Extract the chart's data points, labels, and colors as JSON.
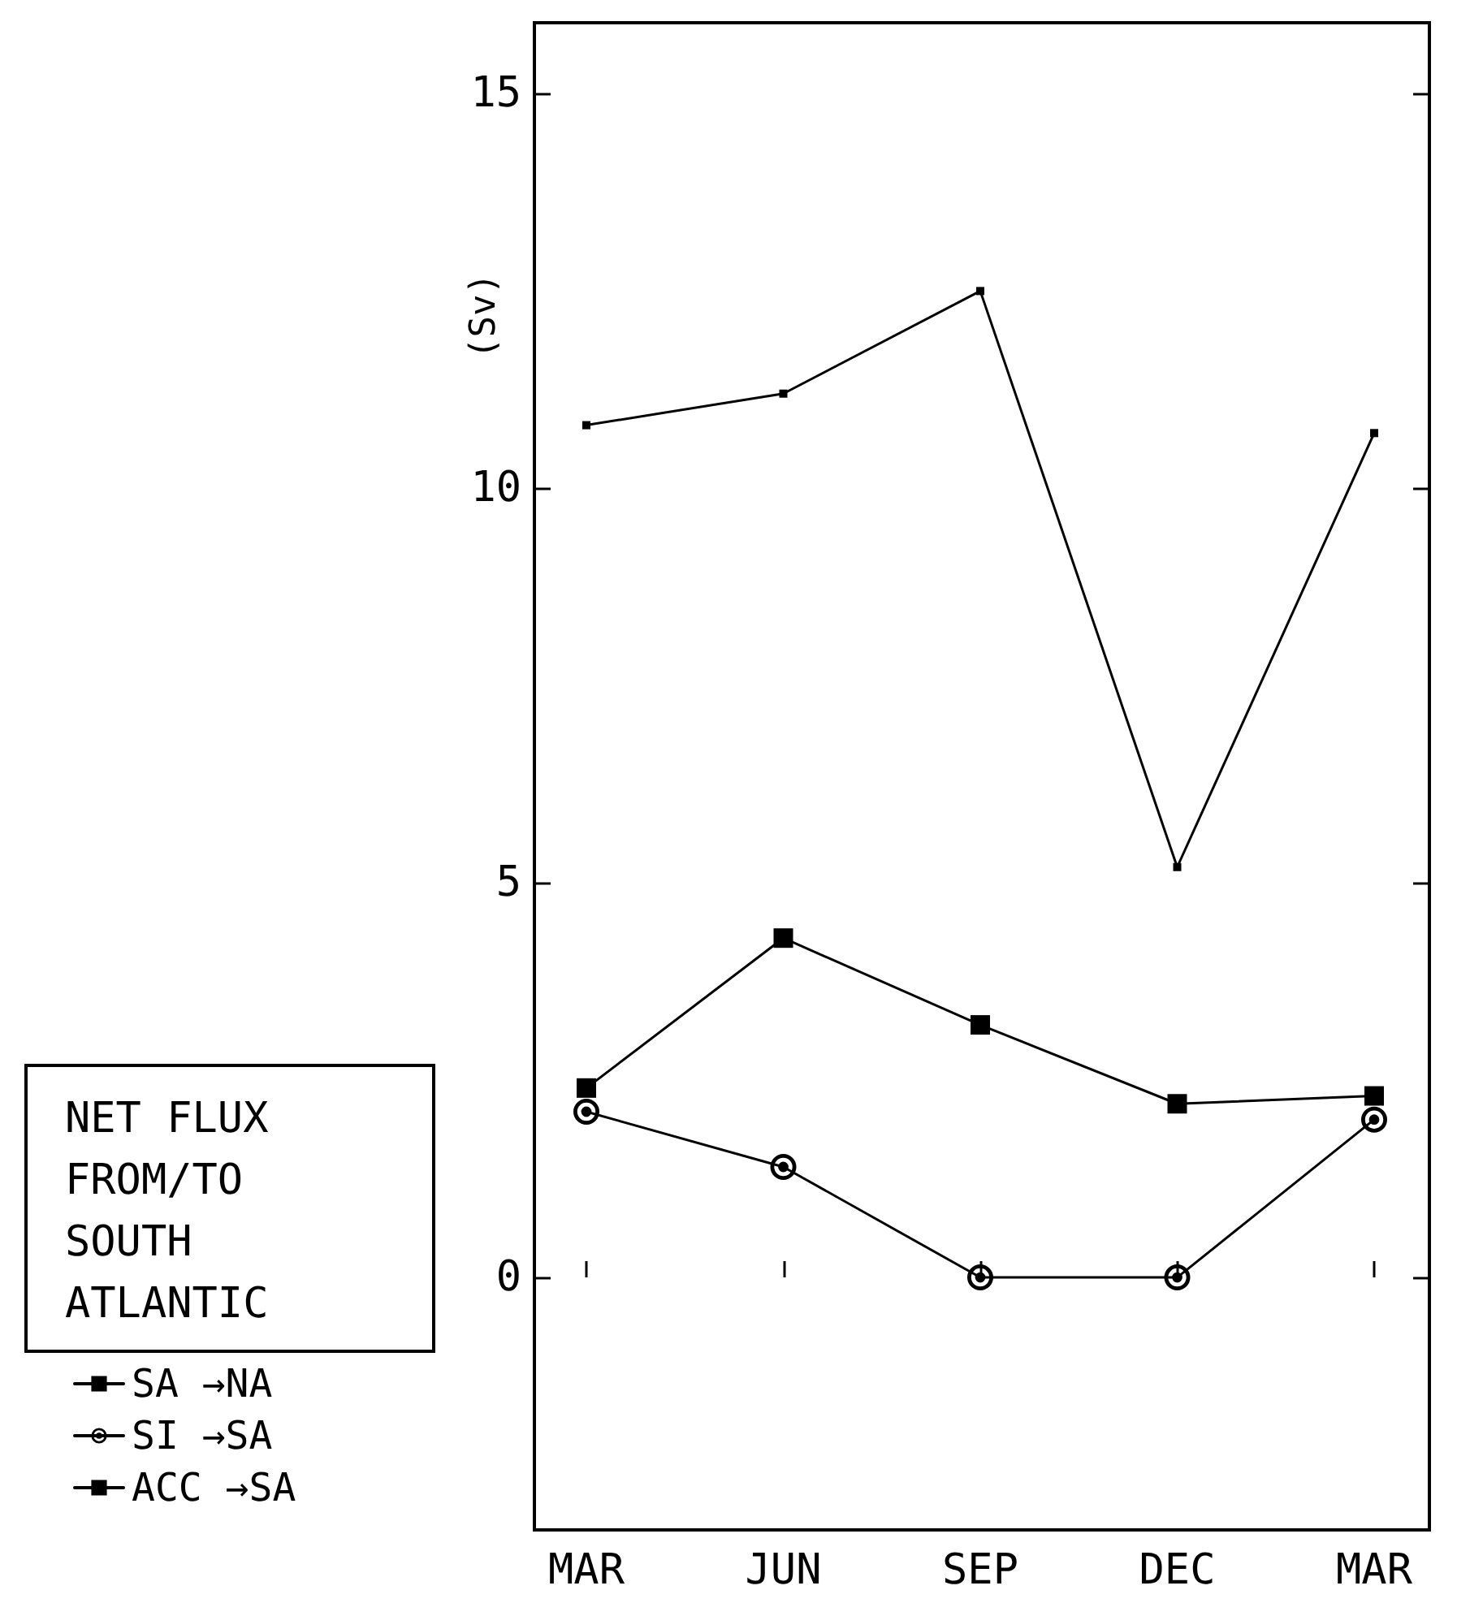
{
  "chart_data": {
    "type": "line",
    "ylabel": "(Sv)",
    "categories": [
      "MAR",
      "JUN",
      "SEP",
      "DEC",
      "MAR"
    ],
    "series": [
      {
        "name": "SA →NA",
        "color": "#000000",
        "marker": "square",
        "values": [
          10.8,
          11.2,
          12.5,
          5.2,
          10.7
        ]
      },
      {
        "name": "SI →SA",
        "color": "#000000",
        "marker": "circle",
        "values": [
          2.1,
          1.4,
          0,
          0,
          2.0
        ]
      },
      {
        "name": "ACC →SA",
        "color": "#000000",
        "marker": "square",
        "values": [
          2.4,
          4.3,
          3.2,
          2.2,
          2.3
        ]
      }
    ],
    "ylim": [
      -3.2,
      15.9
    ],
    "yticks": [
      0,
      5,
      10,
      15
    ],
    "grid": false,
    "legend": "bottom left",
    "line_style": "solid",
    "annotations": [
      "NET FLUX\nFROM/TO\nSOUTH\nATLANTIC"
    ]
  }
}
